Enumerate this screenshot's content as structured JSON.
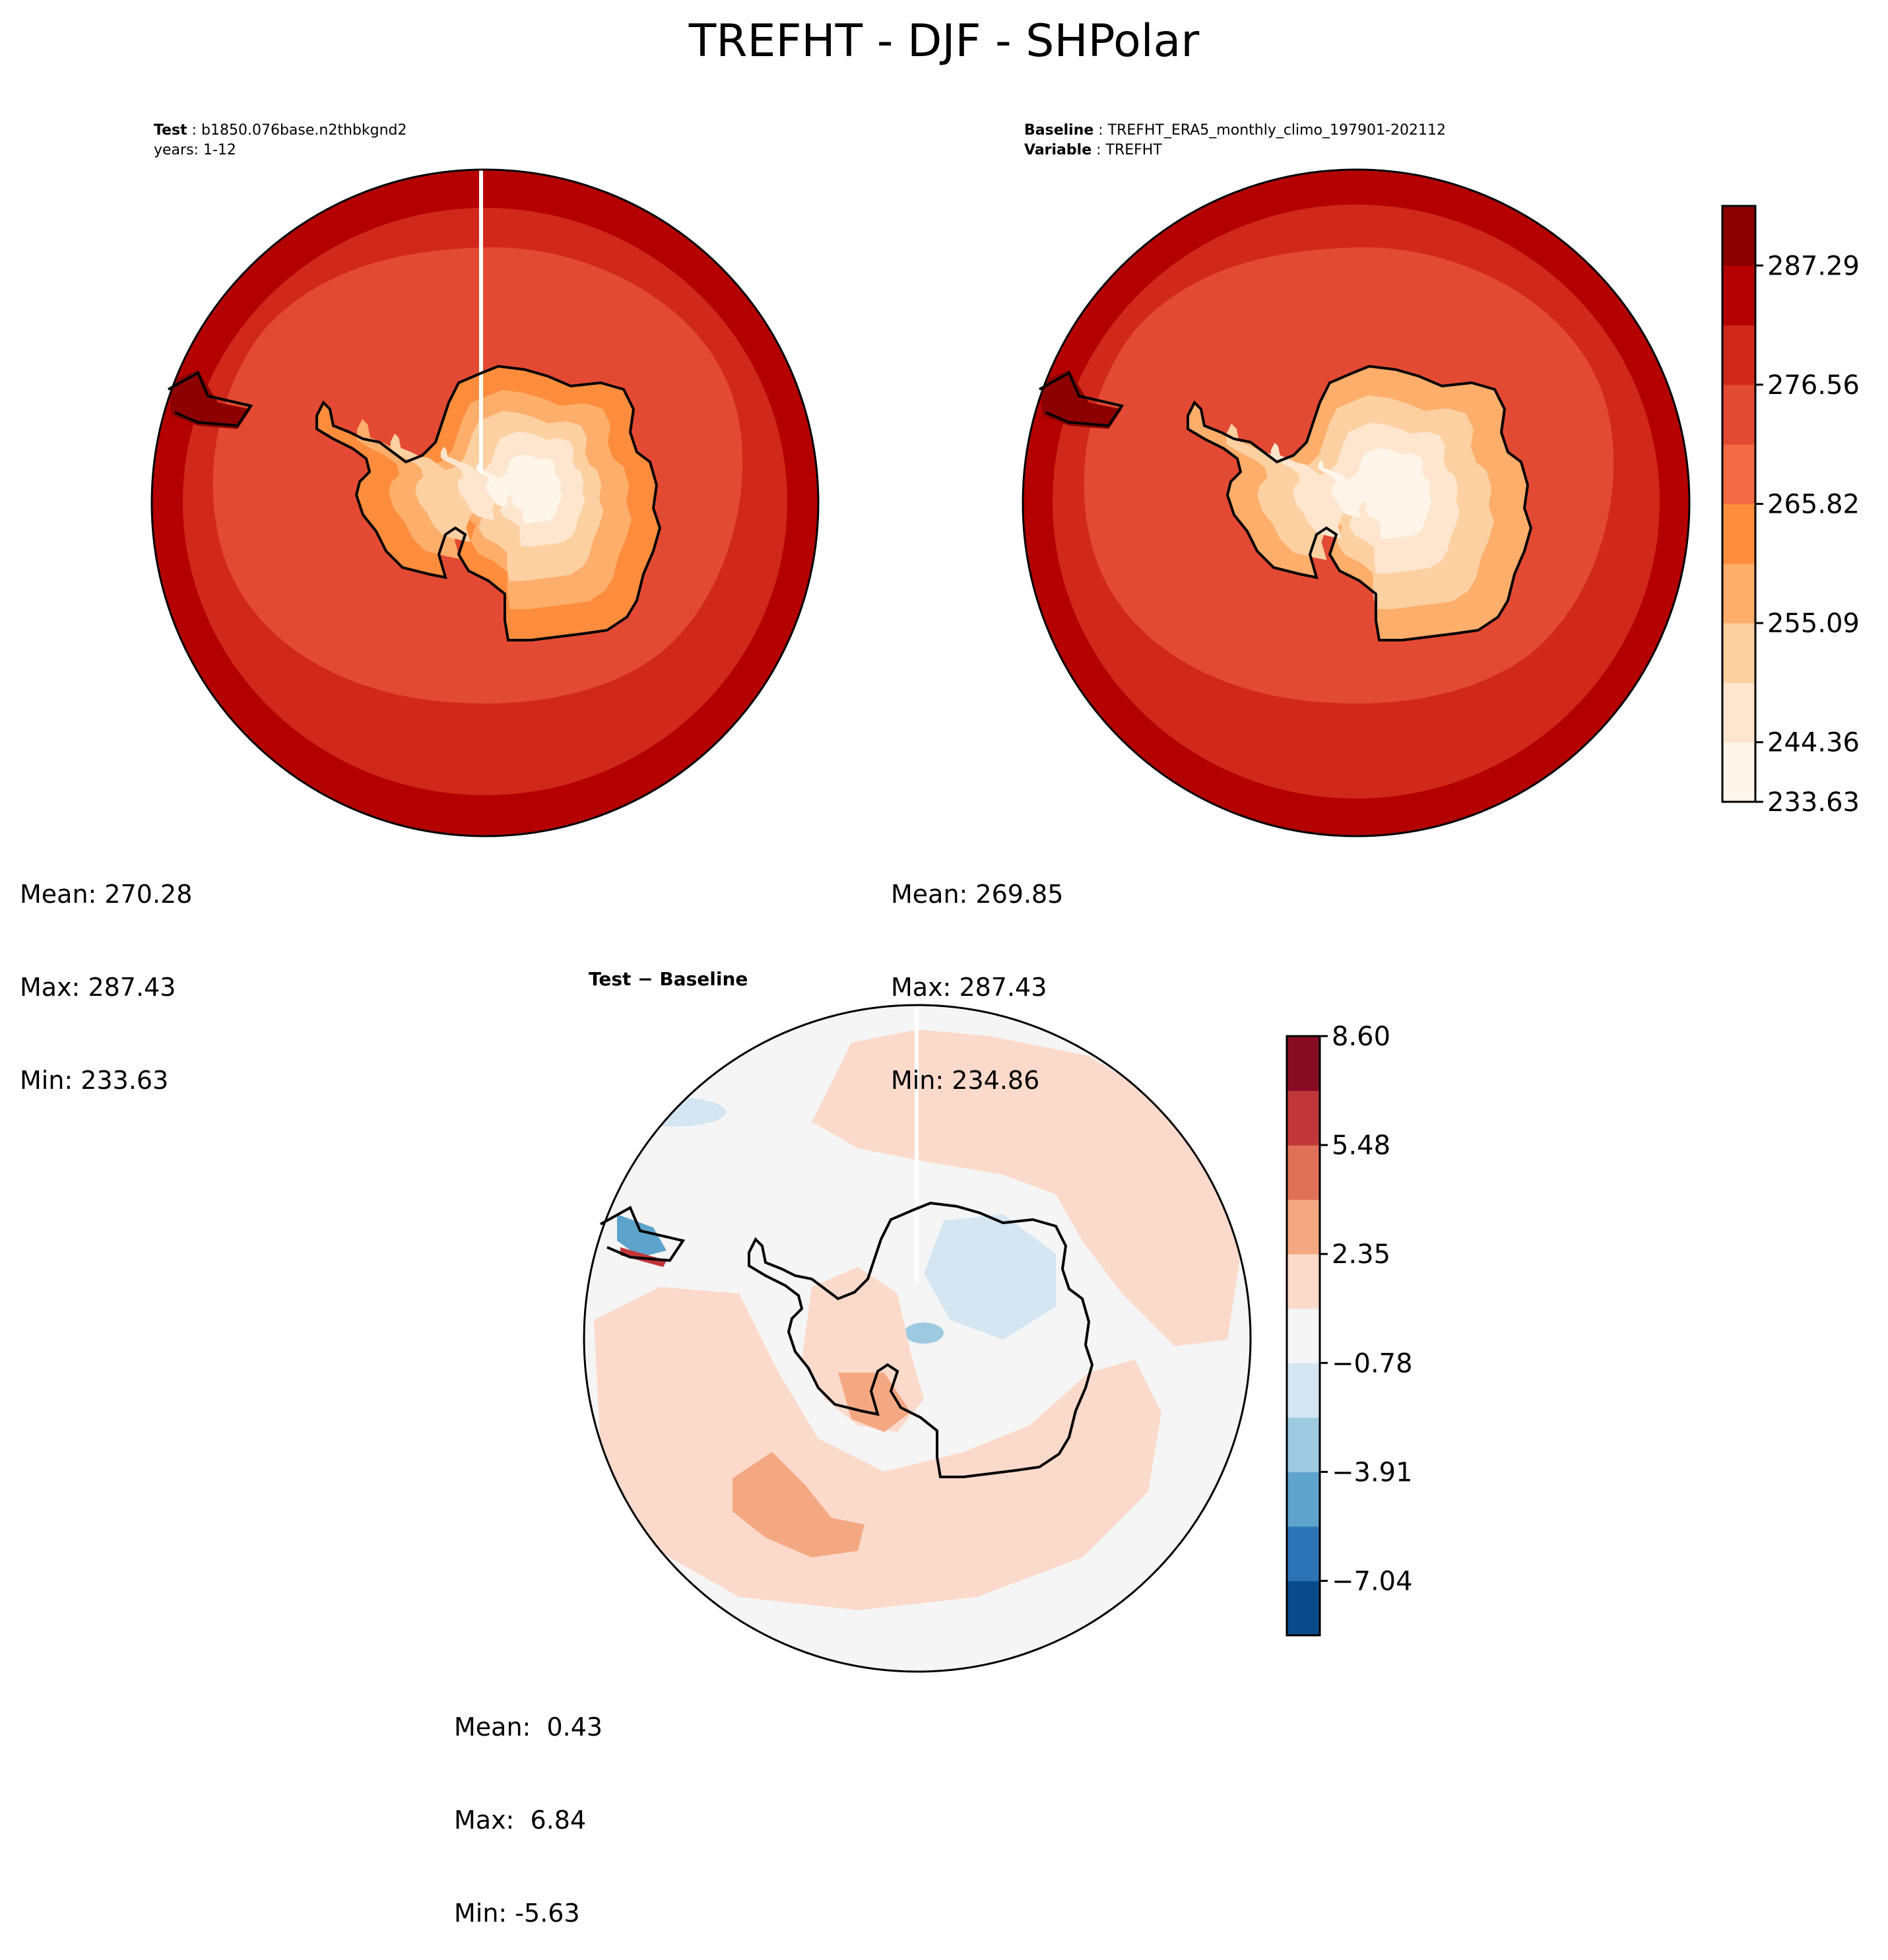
{
  "title": "TREFHT - DJF - SHPolar",
  "test_panel": {
    "header_label": "Test",
    "header_value": "b1850.076base.n2thbkgnd2",
    "years_line": "years: 1-12",
    "stats": {
      "mean": "Mean: 270.28",
      "max": "Max: 287.43",
      "min": "Min: 233.63"
    }
  },
  "baseline_panel": {
    "header_label": "Baseline",
    "header_value": "TREFHT_ERA5_monthly_climo_197901-202112",
    "variable_label": "Variable",
    "variable_value": "TREFHT",
    "stats": {
      "mean": "Mean: 269.85",
      "max": "Max: 287.43",
      "min": "Min: 234.86"
    }
  },
  "diff_panel": {
    "title": "Test − Baseline",
    "stats": {
      "mean": "Mean:  0.43",
      "max": "Max:  6.84",
      "min": "Min: -5.63"
    }
  },
  "colorbar_main": {
    "ticks": [
      "287.29",
      "276.56",
      "265.82",
      "255.09",
      "244.36",
      "233.63"
    ],
    "colors": [
      "#fff5eb",
      "#fee6ce",
      "#fdd0a2",
      "#fdae6b",
      "#fd8d3c",
      "#f26b45",
      "#e34a33",
      "#d0291b",
      "#b50000",
      "#8c0000"
    ]
  },
  "colorbar_diff": {
    "ticks": [
      "8.60",
      "5.48",
      "2.35",
      "−0.78",
      "−3.91",
      "−7.04"
    ],
    "colors": [
      "#0b4a8a",
      "#2c74b6",
      "#5ea3cc",
      "#9ecae1",
      "#d3e6f2",
      "#f5f5f5",
      "#fcdacb",
      "#f4a882",
      "#e07158",
      "#c13639",
      "#880c24"
    ]
  }
}
